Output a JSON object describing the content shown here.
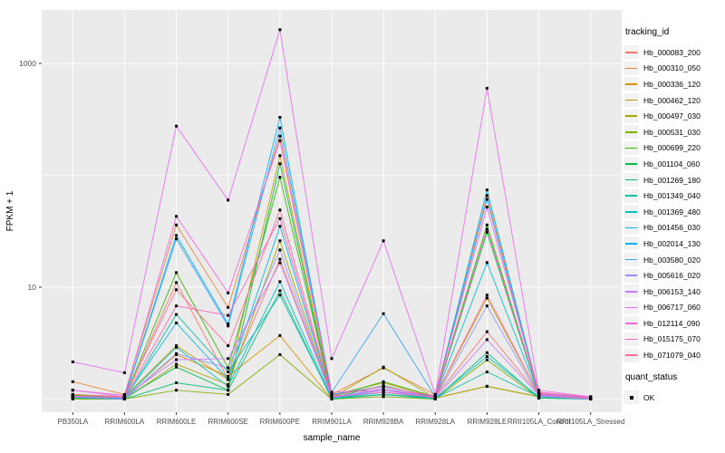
{
  "chart_data": {
    "type": "line",
    "title": "",
    "xlabel": "sample_name",
    "ylabel": "FPKM + 1",
    "x_categories": [
      "PB350LA",
      "RRIM600LA",
      "RRIM600LE",
      "RRIM600SE",
      "RRIM600PE",
      "RRIM901LA",
      "RRIM928BA",
      "RRIM928LA",
      "RRIM928LE",
      "RRII105LA_Control",
      "RRII105LA_Stressed"
    ],
    "y_axis": {
      "scale": "log10",
      "ticks": [
        {
          "label": "1000",
          "value": 1000
        },
        {
          "label": "10",
          "value": 10
        }
      ],
      "minor_grid_values": [
        1,
        100
      ],
      "range": [
        0.75,
        2400
      ]
    },
    "grid": true,
    "legend_position": "right",
    "point_shape": "small-black-square",
    "series": [
      {
        "name": "Hb_000083_200",
        "color": "#F8766D",
        "values": [
          1.05,
          1.02,
          11.0,
          1.5,
          17.8,
          1.05,
          1.2,
          1.05,
          4.0,
          1.1,
          1.02
        ]
      },
      {
        "name": "Hb_000310_050",
        "color": "#EA8331",
        "values": [
          1.43,
          1.1,
          36.0,
          6.6,
          224,
          1.1,
          1.9,
          1.1,
          66,
          1.15,
          1.05
        ]
      },
      {
        "name": "Hb_000336_120",
        "color": "#D89000",
        "values": [
          1.05,
          1.0,
          2.5,
          1.6,
          3.7,
          1.0,
          1.1,
          1.02,
          1.3,
          1.05,
          1.0
        ]
      },
      {
        "name": "Hb_000462_120",
        "color": "#C09B00",
        "values": [
          1.1,
          1.05,
          3.0,
          1.5,
          150,
          1.08,
          1.4,
          1.05,
          8.0,
          1.1,
          1.03
        ]
      },
      {
        "name": "Hb_000497_030",
        "color": "#A3A500",
        "values": [
          1.02,
          1.0,
          2.05,
          1.35,
          26,
          1.02,
          1.93,
          1.02,
          1.3,
          1.05,
          1.0
        ]
      },
      {
        "name": "Hb_000531_030",
        "color": "#7CAE00",
        "values": [
          1.0,
          1.0,
          1.2,
          1.1,
          2.5,
          1.0,
          1.05,
          1.0,
          2.24,
          1.02,
          1.0
        ]
      },
      {
        "name": "Hb_000699_220",
        "color": "#39B600",
        "values": [
          1.08,
          1.03,
          13.5,
          1.9,
          96,
          1.05,
          1.43,
          1.05,
          36,
          1.1,
          1.02
        ]
      },
      {
        "name": "Hb_001104_060",
        "color": "#00BB4E",
        "values": [
          1.05,
          1.02,
          1.93,
          1.2,
          127,
          1.03,
          1.32,
          1.03,
          31,
          1.08,
          1.02
        ]
      },
      {
        "name": "Hb_001269_180",
        "color": "#00BF7D",
        "values": [
          1.02,
          1.0,
          1.4,
          1.2,
          9.3,
          1.0,
          1.1,
          1.0,
          2.6,
          1.02,
          1.0
        ]
      },
      {
        "name": "Hb_001349_040",
        "color": "#00C1A3",
        "values": [
          1.03,
          1.0,
          5.7,
          1.75,
          8.5,
          1.02,
          1.1,
          1.02,
          1.75,
          1.05,
          1.0
        ]
      },
      {
        "name": "Hb_001369_480",
        "color": "#00BFC4",
        "values": [
          1.05,
          1.02,
          2.9,
          1.3,
          11.2,
          1.02,
          1.15,
          1.02,
          2.4,
          1.05,
          1.0
        ]
      },
      {
        "name": "Hb_001456_030",
        "color": "#00BAE0",
        "values": [
          1.05,
          1.02,
          4.8,
          1.5,
          35,
          1.03,
          1.2,
          1.03,
          16.6,
          1.08,
          1.02
        ]
      },
      {
        "name": "Hb_002014_130",
        "color": "#00B0F6",
        "values": [
          1.06,
          1.03,
          29,
          4.7,
          330,
          1.1,
          1.3,
          1.05,
          74,
          1.12,
          1.03
        ]
      },
      {
        "name": "Hb_003580_020",
        "color": "#35A2FF",
        "values": [
          1.05,
          1.02,
          27,
          4.5,
          265,
          1.15,
          5.8,
          1.05,
          61,
          1.1,
          1.02
        ]
      },
      {
        "name": "Hb_005616_020",
        "color": "#9590FF",
        "values": [
          1.04,
          1.0,
          2.55,
          1.9,
          21.5,
          1.02,
          1.25,
          1.02,
          6.8,
          1.06,
          1.0
        ]
      },
      {
        "name": "Hb_006153_140",
        "color": "#C77CFF",
        "values": [
          1.2,
          1.05,
          2.25,
          2.3,
          16.5,
          1.05,
          1.2,
          1.02,
          3.4,
          1.08,
          1.0
        ]
      },
      {
        "name": "Hb_006717_060",
        "color": "#E76BF3",
        "values": [
          2.15,
          1.72,
          275,
          60,
          2000,
          2.3,
          26,
          1.1,
          600,
          1.2,
          1.05
        ]
      },
      {
        "name": "Hb_012114_090",
        "color": "#FA62DB",
        "values": [
          1.2,
          1.08,
          43,
          8.9,
          204,
          1.15,
          1.2,
          1.08,
          52,
          1.15,
          1.04
        ]
      },
      {
        "name": "Hb_015175_070",
        "color": "#FF62BC",
        "values": [
          1.06,
          1.03,
          6.8,
          5.6,
          41,
          1.05,
          1.15,
          1.04,
          33,
          1.12,
          1.02
        ]
      },
      {
        "name": "Hb_071079_040",
        "color": "#FF6A98",
        "values": [
          1.1,
          1.05,
          9.5,
          3.0,
          49,
          1.08,
          1.3,
          1.05,
          8.5,
          1.1,
          1.02
        ]
      }
    ]
  },
  "legend": {
    "tracking_title": "tracking_id",
    "quant_title": "quant_status",
    "quant_ok_label": "OK"
  },
  "style": {
    "panel_bg": "#EBEBEB",
    "grid_color": "#FFFFFF",
    "point_color": "#000000",
    "tick_text_color": "#4D4D4D",
    "axis_title_color": "#000000",
    "tick_mark_color": "#333333",
    "legend_key_bg": "#F2F2F2"
  }
}
